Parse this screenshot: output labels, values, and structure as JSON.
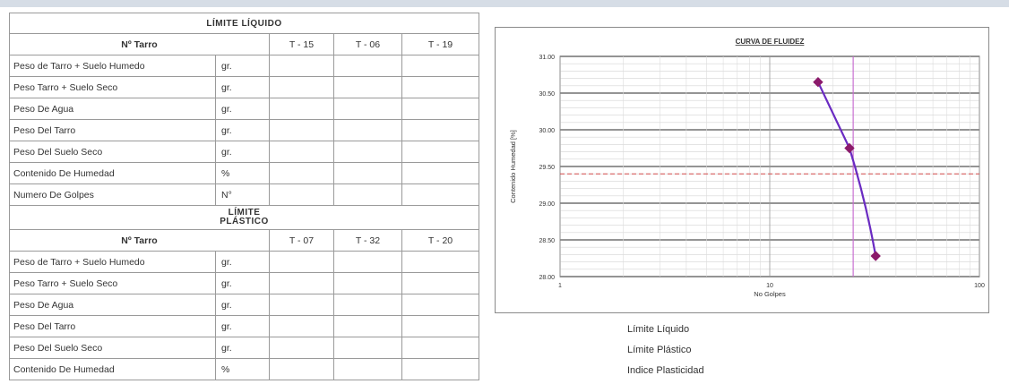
{
  "liquid_limit": {
    "title": "LÍMITE  LÍQUIDO",
    "tarro_header": "Nº Tarro",
    "tarros": [
      "T - 15",
      "T - 06",
      "T - 19"
    ],
    "rows": [
      {
        "label": "Peso de Tarro + Suelo Humedo",
        "unit": "gr."
      },
      {
        "label": "Peso Tarro + Suelo Seco",
        "unit": "gr."
      },
      {
        "label": "Peso De Agua",
        "unit": "gr."
      },
      {
        "label": "Peso Del Tarro",
        "unit": "gr."
      },
      {
        "label": "Peso Del Suelo Seco",
        "unit": "gr."
      },
      {
        "label": "Contenido De Humedad",
        "unit": "%"
      },
      {
        "label": "Numero De Golpes",
        "unit": "N°"
      }
    ]
  },
  "plastic_limit": {
    "title_line1": "LÍMITE",
    "title_line2": "PLÁSTICO",
    "tarro_header": "Nº Tarro",
    "tarros": [
      "T - 07",
      "T - 32",
      "T - 20"
    ],
    "rows": [
      {
        "label": "Peso de Tarro + Suelo Humedo",
        "unit": "gr."
      },
      {
        "label": "Peso Tarro + Suelo Seco",
        "unit": "gr."
      },
      {
        "label": "Peso De Agua",
        "unit": "gr."
      },
      {
        "label": "Peso Del Tarro",
        "unit": "gr."
      },
      {
        "label": "Peso Del Suelo Seco",
        "unit": "gr."
      },
      {
        "label": "Contenido De Humedad",
        "unit": "%"
      }
    ]
  },
  "summary": {
    "liquid_limit_label": "Límite Líquido",
    "plastic_limit_label": "Límite Plástico",
    "plasticity_index_label": "Indice Plasticidad"
  },
  "chart_data": {
    "type": "scatter",
    "title": "CURVA DE FLUIDEZ",
    "xlabel": "No Golpes",
    "ylabel": "Contenido Humedad [%]",
    "x_scale": "log",
    "xlim": [
      1,
      100
    ],
    "ylim": [
      28.0,
      31.0
    ],
    "x_tick_labels": [
      "1",
      "10",
      "100"
    ],
    "y_ticks": [
      28.0,
      28.5,
      29.0,
      29.5,
      30.0,
      30.5,
      31.0
    ],
    "y_tick_labels": [
      "28.00",
      "28.50",
      "29.00",
      "29.50",
      "30.00",
      "30.50",
      "31.00"
    ],
    "grid": true,
    "series": [
      {
        "x": [
          17,
          24,
          32
        ],
        "y": [
          30.65,
          29.75,
          28.28
        ],
        "color": "#8b1a6b",
        "line_color": "#6a2bc2",
        "marker": "diamond"
      }
    ],
    "reference_lines": {
      "vertical_x": 25,
      "vertical_color": "#c86fd0",
      "horizontal_y": 29.4,
      "horizontal_color": "#d24a4a"
    }
  }
}
